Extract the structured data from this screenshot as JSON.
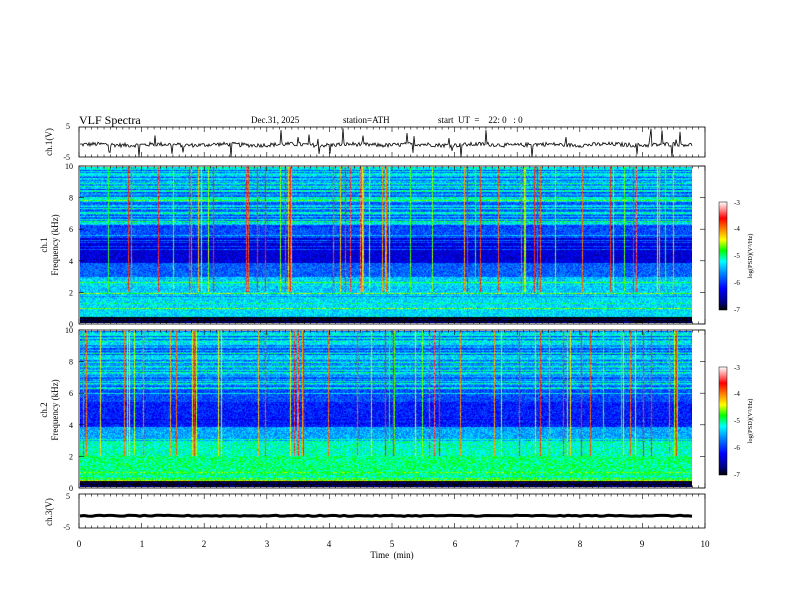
{
  "header": {
    "title": "VLF  Spectra",
    "date": "Dec.31, 2025",
    "station": "station=ATH",
    "start": "start  UT  =    22: 0   : 0"
  },
  "chart_data": [
    {
      "type": "line",
      "name": "ch1-waveform",
      "ylabel": "ch.1(V)",
      "ylim": [
        -5,
        5
      ],
      "yticks": [
        "5",
        "-5"
      ],
      "xlim": [
        0,
        10
      ]
    },
    {
      "type": "heatmap",
      "name": "ch1-spectrogram",
      "ylabel_line1": "ch.1",
      "ylabel_line2": "Frequency (kHz)",
      "ylim": [
        0,
        10
      ],
      "yticks": [
        "0",
        "2",
        "4",
        "6",
        "8",
        "10"
      ],
      "xlim": [
        0,
        9.8
      ],
      "colorbar": {
        "label": "log(PSD)(V²/Hz)",
        "range": [
          -7,
          -3
        ],
        "ticks": [
          "-3",
          "-4",
          "-5",
          "-6",
          "-7"
        ]
      }
    },
    {
      "type": "heatmap",
      "name": "ch2-spectrogram",
      "ylabel_line1": "ch.2",
      "ylabel_line2": "Frequency (kHz)",
      "ylim": [
        0,
        10
      ],
      "yticks": [
        "0",
        "2",
        "4",
        "6",
        "8",
        "10"
      ],
      "xlim": [
        0,
        9.8
      ],
      "colorbar": {
        "label": "log(PSD)(V²/Hz)",
        "range": [
          -7,
          -3
        ],
        "ticks": [
          "-3",
          "-4",
          "-5",
          "-6",
          "-7"
        ]
      }
    },
    {
      "type": "line",
      "name": "ch3-waveform",
      "ylabel": "ch.3(V)",
      "ylim": [
        -5,
        5
      ],
      "yticks": [
        "5",
        "-5"
      ],
      "xlim": [
        0,
        10
      ]
    }
  ],
  "xaxis": {
    "label": "Time  (min)",
    "ticks": [
      "0",
      "1",
      "2",
      "3",
      "4",
      "5",
      "6",
      "7",
      "8",
      "9",
      "10"
    ]
  }
}
